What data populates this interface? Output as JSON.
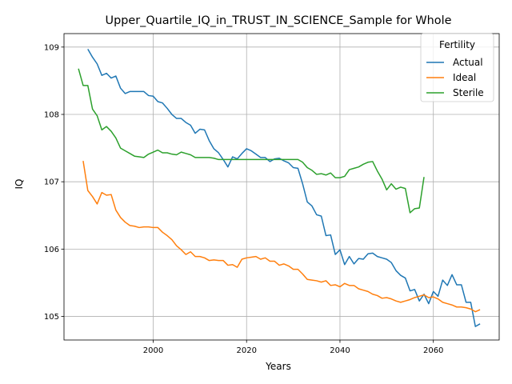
{
  "chart_data": {
    "type": "line",
    "title": "Upper_Quartile_IQ_in_TRUST_IN_SCIENCE_Sample for Whole",
    "xlabel": "Years",
    "ylabel": "IQ",
    "xlim": [
      1980.9,
      2074.1
    ],
    "ylim": [
      104.65,
      109.2
    ],
    "xticks": [
      1980,
      2000,
      2020,
      2040,
      2060
    ],
    "yticks": [
      105,
      106,
      107,
      108,
      109
    ],
    "grid": true,
    "legend": {
      "title": "Fertility",
      "position": "top-right"
    },
    "series": [
      {
        "name": "Actual",
        "color": "#1f77b4",
        "x": [
          1986,
          1987,
          1988,
          1989,
          1990,
          1991,
          1992,
          1993,
          1994,
          1995,
          1996,
          1997,
          1998,
          1999,
          2000,
          2001,
          2002,
          2003,
          2004,
          2005,
          2006,
          2007,
          2008,
          2009,
          2010,
          2011,
          2012,
          2013,
          2014,
          2015,
          2016,
          2017,
          2018,
          2019,
          2020,
          2021,
          2022,
          2023,
          2024,
          2025,
          2026,
          2027,
          2028,
          2029,
          2030,
          2031,
          2032,
          2033,
          2034,
          2035,
          2036,
          2037,
          2038,
          2039,
          2040,
          2041,
          2042,
          2043,
          2044,
          2045,
          2046,
          2047,
          2048,
          2049,
          2050,
          2051,
          2052,
          2053,
          2054,
          2055,
          2056,
          2057,
          2058,
          2059,
          2060,
          2061,
          2062,
          2063,
          2064,
          2065,
          2066,
          2067,
          2068,
          2069,
          2070
        ],
        "values": [
          108.97,
          108.85,
          108.75,
          108.58,
          108.61,
          108.54,
          108.57,
          108.39,
          108.31,
          108.34,
          108.34,
          108.34,
          108.34,
          108.28,
          108.27,
          108.19,
          108.17,
          108.09,
          108.0,
          107.94,
          107.94,
          107.88,
          107.84,
          107.72,
          107.78,
          107.77,
          107.61,
          107.49,
          107.43,
          107.33,
          107.22,
          107.37,
          107.34,
          107.42,
          107.49,
          107.46,
          107.41,
          107.36,
          107.36,
          107.3,
          107.34,
          107.35,
          107.31,
          107.28,
          107.21,
          107.2,
          106.97,
          106.7,
          106.64,
          106.51,
          106.49,
          106.2,
          106.21,
          105.92,
          105.99,
          105.77,
          105.89,
          105.78,
          105.86,
          105.85,
          105.93,
          105.94,
          105.89,
          105.87,
          105.85,
          105.8,
          105.68,
          105.61,
          105.57,
          105.38,
          105.4,
          105.23,
          105.33,
          105.19,
          105.37,
          105.3,
          105.54,
          105.46,
          105.62,
          105.47,
          105.47,
          105.21,
          105.21,
          104.85,
          104.89
        ]
      },
      {
        "name": "Ideal",
        "color": "#ff7f0e",
        "x": [
          1985,
          1986,
          1987,
          1988,
          1989,
          1990,
          1991,
          1992,
          1993,
          1994,
          1995,
          1996,
          1997,
          1998,
          1999,
          2000,
          2001,
          2002,
          2003,
          2004,
          2005,
          2006,
          2007,
          2008,
          2009,
          2010,
          2011,
          2012,
          2013,
          2014,
          2015,
          2016,
          2017,
          2018,
          2019,
          2020,
          2021,
          2022,
          2023,
          2024,
          2025,
          2026,
          2027,
          2028,
          2029,
          2030,
          2031,
          2032,
          2033,
          2034,
          2035,
          2036,
          2037,
          2038,
          2039,
          2040,
          2041,
          2042,
          2043,
          2044,
          2045,
          2046,
          2047,
          2048,
          2049,
          2050,
          2051,
          2052,
          2053,
          2054,
          2055,
          2056,
          2057,
          2058,
          2059,
          2060,
          2061,
          2062,
          2063,
          2064,
          2065,
          2066,
          2067,
          2068,
          2069,
          2070
        ],
        "values": [
          107.31,
          106.87,
          106.78,
          106.67,
          106.84,
          106.8,
          106.81,
          106.58,
          106.47,
          106.4,
          106.35,
          106.34,
          106.32,
          106.33,
          106.33,
          106.32,
          106.32,
          106.25,
          106.2,
          106.14,
          106.05,
          105.99,
          105.92,
          105.96,
          105.89,
          105.89,
          105.87,
          105.83,
          105.84,
          105.83,
          105.83,
          105.76,
          105.77,
          105.73,
          105.85,
          105.87,
          105.88,
          105.89,
          105.85,
          105.87,
          105.82,
          105.82,
          105.76,
          105.78,
          105.75,
          105.7,
          105.7,
          105.63,
          105.55,
          105.54,
          105.53,
          105.51,
          105.53,
          105.46,
          105.47,
          105.44,
          105.49,
          105.46,
          105.46,
          105.41,
          105.39,
          105.37,
          105.33,
          105.31,
          105.27,
          105.28,
          105.26,
          105.23,
          105.21,
          105.23,
          105.25,
          105.28,
          105.3,
          105.32,
          105.28,
          105.29,
          105.26,
          105.21,
          105.19,
          105.17,
          105.14,
          105.14,
          105.13,
          105.11,
          105.07,
          105.1
        ]
      },
      {
        "name": "Sterile",
        "color": "#2ca02c",
        "x": [
          1984,
          1985,
          1986,
          1987,
          1988,
          1989,
          1990,
          1991,
          1992,
          1993,
          1994,
          1995,
          1996,
          1997,
          1998,
          1999,
          2000,
          2001,
          2002,
          2003,
          2004,
          2005,
          2006,
          2007,
          2008,
          2009,
          2010,
          2011,
          2012,
          2013,
          2014,
          2015,
          2016,
          2017,
          2018,
          2019,
          2020,
          2021,
          2022,
          2023,
          2024,
          2025,
          2026,
          2027,
          2028,
          2029,
          2030,
          2031,
          2032,
          2033,
          2034,
          2035,
          2036,
          2037,
          2038,
          2039,
          2040,
          2041,
          2042,
          2043,
          2044,
          2045,
          2046,
          2047,
          2048,
          2049,
          2050,
          2051,
          2052,
          2053,
          2054,
          2055,
          2056,
          2057,
          2058
        ],
        "values": [
          108.68,
          108.43,
          108.43,
          108.08,
          107.98,
          107.77,
          107.82,
          107.75,
          107.65,
          107.5,
          107.46,
          107.42,
          107.38,
          107.37,
          107.36,
          107.41,
          107.44,
          107.47,
          107.43,
          107.43,
          107.41,
          107.4,
          107.44,
          107.42,
          107.4,
          107.36,
          107.36,
          107.36,
          107.36,
          107.35,
          107.33,
          107.33,
          107.33,
          107.33,
          107.33,
          107.33,
          107.33,
          107.33,
          107.33,
          107.33,
          107.33,
          107.33,
          107.33,
          107.33,
          107.33,
          107.33,
          107.33,
          107.33,
          107.29,
          107.21,
          107.17,
          107.11,
          107.12,
          107.1,
          107.13,
          107.06,
          107.06,
          107.08,
          107.18,
          107.2,
          107.22,
          107.26,
          107.29,
          107.3,
          107.16,
          107.04,
          106.88,
          106.97,
          106.89,
          106.92,
          106.9,
          106.54,
          106.6,
          106.61,
          107.07
        ]
      }
    ]
  }
}
